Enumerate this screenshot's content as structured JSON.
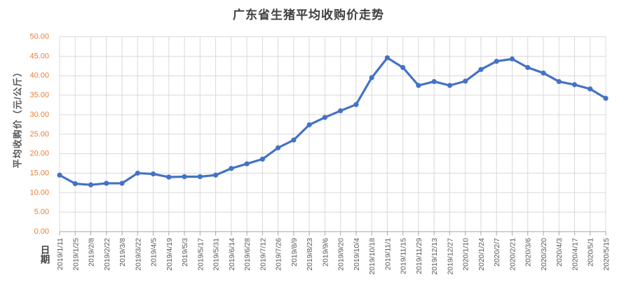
{
  "chart_data": {
    "type": "line",
    "title": "广东省生猪平均收购价走势",
    "xlabel": "日期",
    "ylabel": "平均收购价（元/公斤）",
    "categories": [
      "2019/1/11",
      "2019/1/25",
      "2019/2/8",
      "2019/2/22",
      "2019/3/8",
      "2019/3/22",
      "2019/4/5",
      "2019/4/19",
      "2019/5/3",
      "2019/5/17",
      "2019/5/31",
      "2019/6/14",
      "2019/6/28",
      "2019/7/12",
      "2019/7/26",
      "2019/8/9",
      "2019/8/23",
      "2019/9/6",
      "2019/9/20",
      "2019/10/4",
      "2019/10/18",
      "2019/11/1",
      "2019/11/15",
      "2019/11/29",
      "2019/12/13",
      "2019/12/27",
      "2020/1/10",
      "2020/1/24",
      "2020/2/7",
      "2020/2/21",
      "2020/3/6",
      "2020/3/20",
      "2020/4/3",
      "2020/4/17",
      "2020/5/1",
      "2020/5/15"
    ],
    "values": [
      14.5,
      12.3,
      12.0,
      12.4,
      12.4,
      15.0,
      14.8,
      14.0,
      14.1,
      14.1,
      14.5,
      16.2,
      17.4,
      18.6,
      21.5,
      23.5,
      27.4,
      29.3,
      31.0,
      32.6,
      39.5,
      44.6,
      42.1,
      37.5,
      38.5,
      37.5,
      38.6,
      41.6,
      43.7,
      44.3,
      42.1,
      40.7,
      38.5,
      37.7,
      36.6,
      34.2
    ],
    "ylim": [
      0,
      50
    ],
    "ytick_step": 5,
    "ytick_format": "0.00",
    "grid": true,
    "legend": "none",
    "colors": {
      "line": "#4472C4",
      "marker": "#4472C4",
      "y_tick_labels": "#ED7D31",
      "x_tick_labels": "#595959",
      "gridline": "#D9D9D9",
      "axis_line": "#A6A6A6",
      "title": "#404040"
    }
  }
}
